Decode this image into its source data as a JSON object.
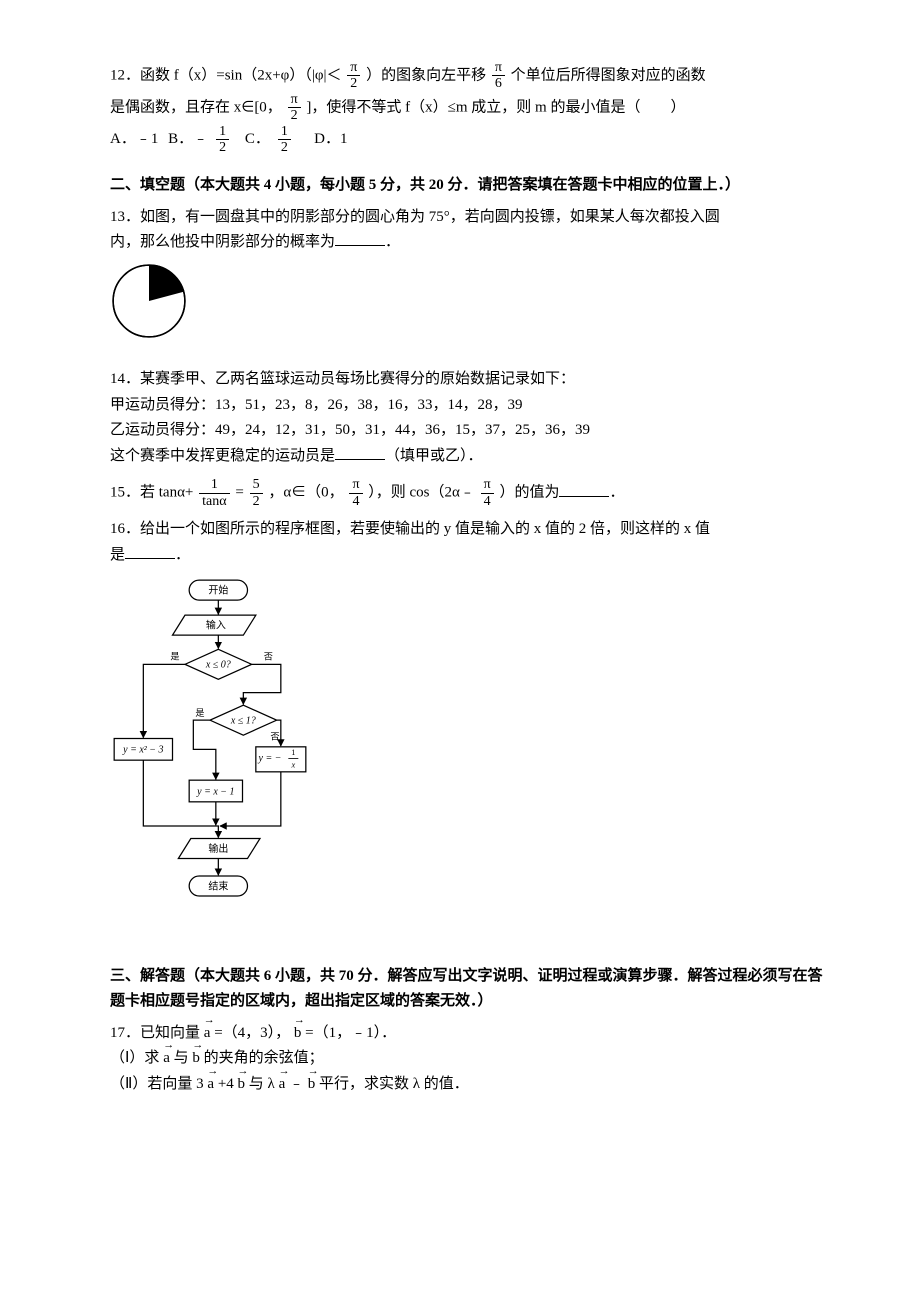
{
  "q12": {
    "stem_a": "12．函数 f（x）=sin（2x+φ）（|φ|＜",
    "pi": "π",
    "two": "2",
    "stem_b": "）的图象向左平移",
    "six": "6",
    "stem_c": "个单位后所得图象对应的函数",
    "line2_a": "是偶函数，且存在 x∈[0，",
    "line2_b": "]，使得不等式 f（x）≤m 成立，则 m 的最小值是（　　）",
    "optA": "A．﹣1",
    "optB": "B．﹣",
    "one": "1",
    "optC": "C．",
    "optD": "D．1"
  },
  "section2": "二、填空题（本大题共 4 小题，每小题 5 分，共 20 分．请把答案填在答题卡中相应的位置上．）",
  "q13": {
    "line1": "13．如图，有一圆盘其中的阴影部分的圆心角为 75°，若向圆内投镖，如果某人每次都投入圆",
    "line2a": "内，那么他投中阴影部分的概率为",
    "line2b": "．",
    "chart": {
      "type": "pie",
      "angle_deg": 75,
      "start_deg": -90,
      "shaded_color": "#000000",
      "open_color": "#ffffff",
      "border_color": "#000000",
      "border_width": 1.5
    }
  },
  "q14": {
    "line1": "14．某赛季甲、乙两名篮球运动员每场比赛得分的原始数据记录如下：",
    "line2": "甲运动员得分：13，51，23，8，26，38，16，33，14，28，39",
    "line3": "乙运动员得分：49，24，12，31，50，31，44，36，15，37，25，36，39",
    "line4a": "这个赛季中发挥更稳定的运动员是",
    "line4b": "（填甲或乙）．"
  },
  "q15": {
    "a": "15．若 tanα+",
    "num1": "1",
    "den1": "tanα",
    "eq": "=",
    "num2": "5",
    "den2": "2",
    "b": "，α∈（0，",
    "pi": "π",
    "four": "4",
    "c": "），则 cos（2α﹣",
    "d": "）的值为",
    "e": "．"
  },
  "q16": {
    "line1": "16．给出一个如图所示的程序框图，若要使输出的 y 值是输入的 x 值的 2 倍，则这样的 x 值",
    "line2a": "是",
    "line2b": "．",
    "flow": {
      "type": "flowchart",
      "bg": "#ffffff",
      "line_color": "#000000",
      "line_width": 1.5,
      "font_size": 12,
      "labels": {
        "start": "开始",
        "input": "输入",
        "cond1": "x ≤ 0?",
        "yes": "是",
        "no": "否",
        "cond2": "x ≤ 1?",
        "branch1": "y = x² − 3",
        "branch2": "y = x − 1",
        "branch3_a": "y = −",
        "branch3_num": "1",
        "branch3_den": "x",
        "output": "输出",
        "end": "结束"
      }
    }
  },
  "section3": "三、解答题（本大题共 6 小题，共 70 分．解答应写出文字说明、证明过程或演算步骤．解答过程必须写在答题卡相应题号指定的区域内，超出指定区域的答案无效．）",
  "q17": {
    "line1a": "17．已知向量",
    "vec_a": "a",
    "line1b": "=（4，3），",
    "vec_b": "b",
    "line1c": "=（1，﹣1）．",
    "line2a": "（Ⅰ）求",
    "line2b": "与",
    "line2c": "的夹角的余弦值；",
    "line3a": "（Ⅱ）若向量 3",
    "line3b": "+4",
    "line3c": "与 λ",
    "line3d": "﹣",
    "line3e": "平行，求实数 λ 的值．"
  }
}
